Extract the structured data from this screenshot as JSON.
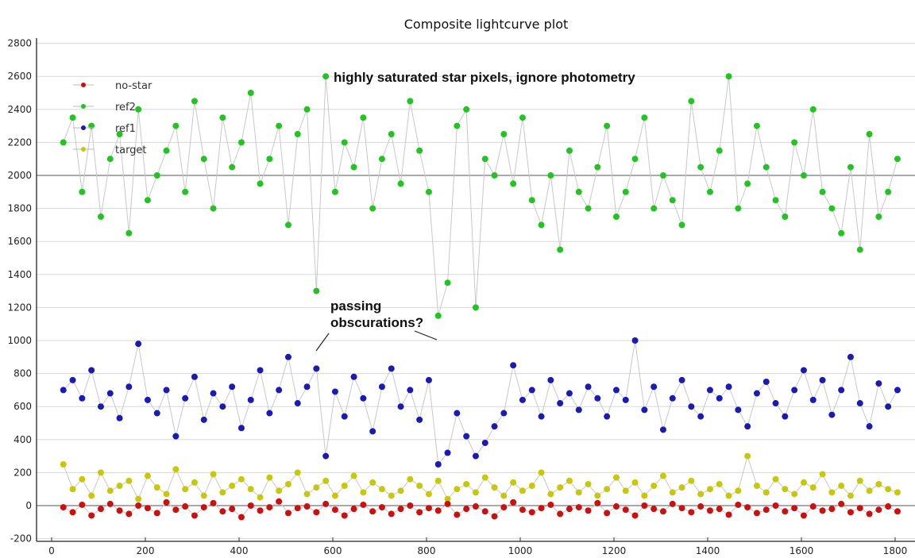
{
  "chart_data": {
    "type": "scatter",
    "title": "Composite lightcurve plot",
    "xlabel": "",
    "ylabel": "",
    "xlim": [
      -32,
      1840
    ],
    "ylim": [
      -216,
      2830
    ],
    "xticks": [
      0,
      200,
      400,
      600,
      800,
      1000,
      1200,
      1400,
      1600,
      1800
    ],
    "yticks": [
      -200,
      0,
      200,
      400,
      600,
      800,
      1000,
      1200,
      1400,
      1600,
      1800,
      2000,
      2200,
      2400,
      2600,
      2800
    ],
    "grid": true,
    "legend_position": "top-left",
    "x_start": 25,
    "x_step": 20,
    "series": [
      {
        "name": "ref2",
        "color": "#22c422",
        "values": [
          2200,
          2350,
          1900,
          2300,
          1750,
          2100,
          2250,
          1650,
          2400,
          1850,
          2000,
          2150,
          2300,
          1900,
          2450,
          2100,
          1800,
          2350,
          2050,
          2200,
          2500,
          1950,
          2100,
          2300,
          1700,
          2250,
          2400,
          1300,
          2600,
          1900,
          2200,
          2050,
          2350,
          1800,
          2100,
          2250,
          1950,
          2450,
          2150,
          1900,
          1150,
          1350,
          2300,
          2400,
          1200,
          2100,
          2000,
          2250,
          1950,
          2350,
          1850,
          1700,
          2000,
          1550,
          2150,
          1900,
          1800,
          2050,
          2300,
          1750,
          1900,
          2100,
          2350,
          1800,
          2000,
          1850,
          1700,
          2450,
          2050,
          1900,
          2150,
          2600,
          1800,
          1950,
          2300,
          2050,
          1850,
          1750,
          2200,
          2000,
          2400,
          1900,
          1800,
          1650,
          2050,
          1550,
          2250,
          1750,
          1900,
          2100
        ]
      },
      {
        "name": "ref1",
        "color": "#1a1ab4",
        "values": [
          700,
          760,
          650,
          820,
          600,
          680,
          530,
          720,
          980,
          640,
          560,
          700,
          420,
          650,
          780,
          520,
          680,
          600,
          720,
          470,
          640,
          820,
          560,
          700,
          900,
          620,
          720,
          830,
          300,
          690,
          540,
          780,
          650,
          450,
          720,
          830,
          600,
          700,
          520,
          760,
          250,
          320,
          560,
          420,
          300,
          380,
          480,
          560,
          850,
          640,
          700,
          540,
          760,
          620,
          680,
          580,
          720,
          650,
          540,
          700,
          640,
          1000,
          580,
          720,
          460,
          650,
          760,
          600,
          540,
          700,
          650,
          720,
          580,
          480,
          680,
          750,
          620,
          540,
          700,
          820,
          640,
          760,
          550,
          700,
          900,
          620,
          480,
          740,
          600,
          700
        ]
      },
      {
        "name": "target",
        "color": "#c8c80a",
        "values": [
          250,
          100,
          160,
          60,
          200,
          90,
          120,
          150,
          40,
          180,
          110,
          70,
          220,
          100,
          140,
          60,
          190,
          80,
          120,
          160,
          100,
          50,
          170,
          90,
          130,
          200,
          70,
          110,
          150,
          60,
          120,
          180,
          80,
          140,
          100,
          60,
          90,
          160,
          120,
          70,
          150,
          40,
          100,
          130,
          80,
          170,
          110,
          60,
          140,
          90,
          120,
          200,
          70,
          110,
          150,
          80,
          130,
          60,
          100,
          170,
          90,
          140,
          60,
          120,
          180,
          80,
          110,
          150,
          70,
          100,
          130,
          60,
          90,
          300,
          120,
          80,
          160,
          100,
          70,
          140,
          110,
          190,
          80,
          120,
          60,
          150,
          90,
          130,
          100,
          80
        ]
      },
      {
        "name": "no-star",
        "color": "#cc1010",
        "values": [
          -10,
          -40,
          5,
          -60,
          -20,
          10,
          -30,
          -50,
          0,
          -15,
          -45,
          20,
          -25,
          -5,
          -60,
          -10,
          15,
          -35,
          -20,
          -70,
          0,
          -30,
          -10,
          25,
          -45,
          -15,
          -5,
          -40,
          10,
          -25,
          -60,
          -20,
          5,
          -35,
          -10,
          -50,
          -20,
          0,
          -40,
          -15,
          -30,
          10,
          -55,
          -20,
          -5,
          -35,
          -65,
          -10,
          20,
          -25,
          -40,
          -15,
          5,
          -50,
          -20,
          -10,
          -30,
          15,
          -45,
          -5,
          -25,
          -60,
          0,
          -20,
          -35,
          10,
          -15,
          -40,
          -5,
          -30,
          -20,
          -55,
          5,
          -10,
          -45,
          -25,
          0,
          -35,
          -15,
          -60,
          -5,
          -30,
          -20,
          10,
          -40,
          -15,
          -50,
          -25,
          -5,
          -35
        ]
      }
    ],
    "legend": [
      {
        "name": "no-star",
        "color": "#cc1010"
      },
      {
        "name": "ref2",
        "color": "#22c422"
      },
      {
        "name": "ref1",
        "color": "#1a1ab4"
      },
      {
        "name": "target",
        "color": "#c8c80a"
      }
    ],
    "annotations": {
      "saturated": "highly saturated star pixels, ignore photometry",
      "obscurations_line1": "passing",
      "obscurations_line2": "obscurations?"
    }
  }
}
